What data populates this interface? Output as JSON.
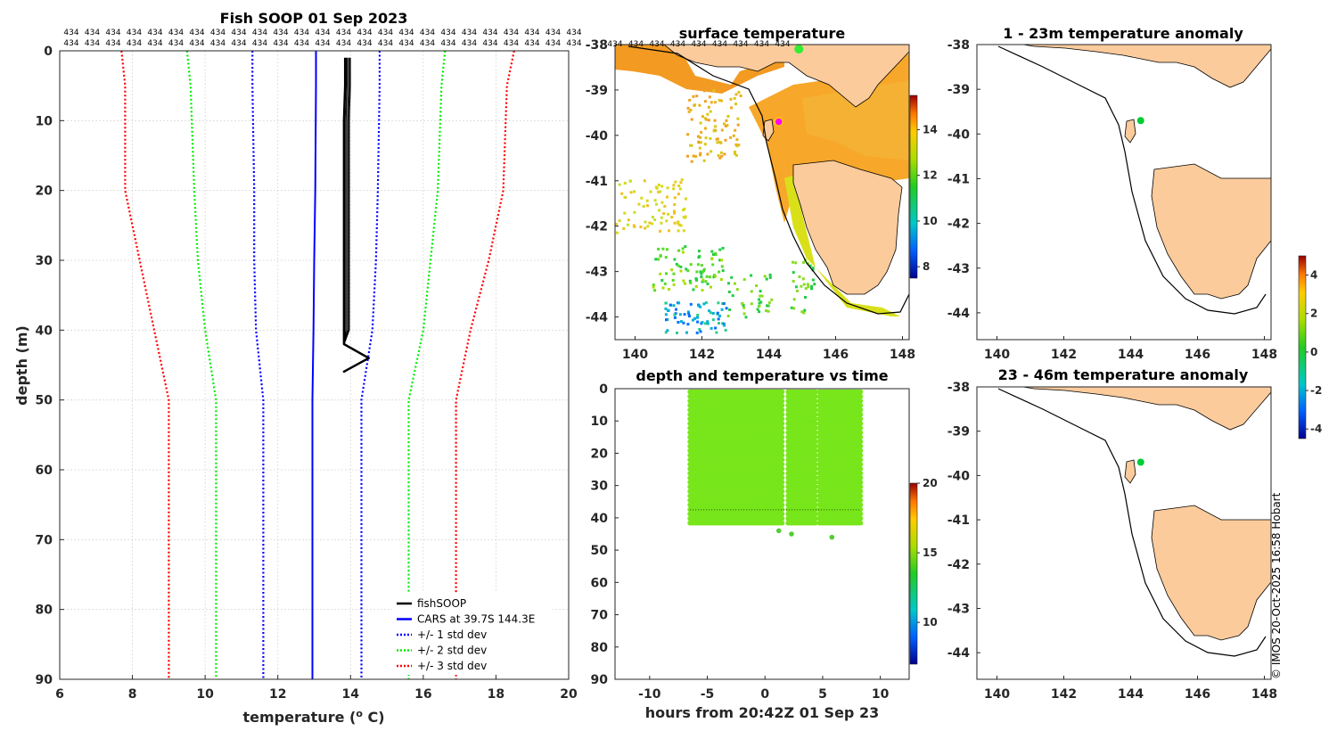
{
  "chart_data": [
    {
      "type": "line",
      "title": "Fish SOOP 01 Sep 2023",
      "xlabel": "temperature (",
      "xlabel_sup": "o",
      "xlabel_tail": " C)",
      "ylabel": "depth (m)",
      "xlim": [
        6,
        20
      ],
      "ylim": [
        0,
        90
      ],
      "y_reversed": true,
      "xticks": [
        6,
        8,
        10,
        12,
        14,
        16,
        18,
        20
      ],
      "yticks": [
        0,
        10,
        20,
        30,
        40,
        50,
        60,
        70,
        80,
        90
      ],
      "grid": true,
      "count_label": "434",
      "count_rows": 2,
      "count_labels_per_row": 25,
      "series": [
        {
          "name": "fishSOOP",
          "color": "#000000",
          "style": "solid",
          "depth": [
            1,
            5,
            10,
            20,
            30,
            40,
            42,
            44,
            46
          ],
          "temp": [
            13.85,
            13.85,
            13.82,
            13.82,
            13.82,
            13.82,
            13.82,
            14.5,
            13.8
          ]
        },
        {
          "name": "CARS at 39.7S 144.3E",
          "color": "#0000ff",
          "style": "solid",
          "depth": [
            0,
            5,
            20,
            30,
            40,
            50,
            60,
            70,
            80,
            90
          ],
          "temp": [
            13.05,
            13.05,
            13.03,
            13.0,
            12.98,
            12.95,
            12.95,
            12.95,
            12.95,
            12.95
          ]
        },
        {
          "name": "+/- 1 std dev",
          "color": "#0000ff",
          "style": "dotted",
          "depth": [
            0,
            5,
            20,
            30,
            40,
            50,
            60,
            70,
            80,
            90
          ],
          "lower": [
            11.3,
            11.3,
            11.35,
            11.35,
            11.4,
            11.6,
            11.6,
            11.6,
            11.6,
            11.6
          ],
          "upper": [
            14.8,
            14.8,
            14.75,
            14.7,
            14.6,
            14.3,
            14.3,
            14.3,
            14.3,
            14.3
          ]
        },
        {
          "name": "+/- 2 std dev",
          "color": "#00ee00",
          "style": "dotted",
          "depth": [
            0,
            5,
            20,
            30,
            40,
            50,
            60,
            70,
            80,
            90
          ],
          "lower": [
            9.5,
            9.6,
            9.7,
            9.8,
            10.0,
            10.3,
            10.3,
            10.3,
            10.3,
            10.3
          ],
          "upper": [
            16.6,
            16.5,
            16.4,
            16.2,
            16.0,
            15.6,
            15.6,
            15.6,
            15.6,
            15.6
          ]
        },
        {
          "name": "+/- 3 std dev",
          "color": "#ff0000",
          "style": "dotted",
          "depth": [
            0,
            5,
            20,
            30,
            40,
            50,
            60,
            70,
            80,
            90
          ],
          "lower": [
            7.7,
            7.8,
            7.8,
            8.2,
            8.6,
            9.0,
            9.0,
            9.0,
            9.0,
            9.0
          ],
          "upper": [
            18.5,
            18.3,
            18.2,
            17.8,
            17.3,
            16.9,
            16.9,
            16.9,
            16.9,
            16.9
          ]
        }
      ]
    },
    {
      "type": "heatmap",
      "title": "surface temperature",
      "xlim": [
        139.4,
        148.2
      ],
      "ylim": [
        -44.5,
        -38
      ],
      "xticks": [
        140,
        142,
        144,
        146,
        148
      ],
      "yticks": [
        -38,
        -39,
        -40,
        -41,
        -42,
        -43,
        -44
      ],
      "colorbar_ticks": [
        8,
        10,
        12,
        14
      ],
      "colorbar_range": [
        7.5,
        15.5
      ],
      "count_label": "434",
      "count_labels": 9,
      "markers": [
        {
          "name": "vessel position",
          "lon": 144.3,
          "lat": -39.7,
          "color": "#ff00ff"
        },
        {
          "name": "coastal green dot",
          "lon": 144.9,
          "lat": -38.1,
          "color": "#33ee33"
        }
      ]
    },
    {
      "type": "scatter",
      "title": "depth and temperature vs time",
      "xlabel": "hours from 20:42Z 01 Sep 23",
      "xlim": [
        -13,
        12.5
      ],
      "ylim": [
        0,
        90
      ],
      "y_reversed": true,
      "xticks": [
        -10,
        -5,
        0,
        5,
        10
      ],
      "yticks": [
        0,
        10,
        20,
        30,
        40,
        50,
        60,
        70,
        80,
        90
      ],
      "point_color": "#77e61a",
      "time_range": [
        -6.5,
        8.3
      ],
      "depth_range": [
        1,
        42
      ],
      "gaps": [
        [
          1.5,
          1.9
        ],
        [
          4.5,
          4.7
        ]
      ],
      "profile_line_depth": 37.5,
      "outliers": [
        {
          "t": 1.2,
          "d": 44
        },
        {
          "t": 2.3,
          "d": 45
        },
        {
          "t": 5.8,
          "d": 46
        }
      ],
      "colorbar_ticks": [
        10,
        15,
        20
      ],
      "colorbar_range": [
        7,
        20
      ]
    },
    {
      "type": "heatmap",
      "title": "1 - 23m temperature anomaly",
      "xlim": [
        139.4,
        148.2
      ],
      "ylim": [
        -44.6,
        -38
      ],
      "xticks": [
        140,
        142,
        144,
        146,
        148
      ],
      "yticks": [
        -38,
        -39,
        -40,
        -41,
        -42,
        -43,
        -44
      ],
      "marker": {
        "lon": 144.3,
        "lat": -39.7,
        "color": "#00cc33"
      }
    },
    {
      "type": "heatmap",
      "title": "23 - 46m temperature anomaly",
      "xlim": [
        139.4,
        148.2
      ],
      "ylim": [
        -44.6,
        -38
      ],
      "xticks": [
        140,
        142,
        144,
        146,
        148
      ],
      "yticks": [
        -38,
        -39,
        -40,
        -41,
        -42,
        -43,
        -44
      ],
      "marker": {
        "lon": 144.3,
        "lat": -39.7,
        "color": "#00cc33"
      },
      "colorbar_ticks": [
        -4,
        -2,
        0,
        2,
        4
      ],
      "colorbar_range": [
        -4.5,
        5
      ]
    }
  ],
  "credit": "© IMOS 20-Oct-2025 16:58 Hobart"
}
